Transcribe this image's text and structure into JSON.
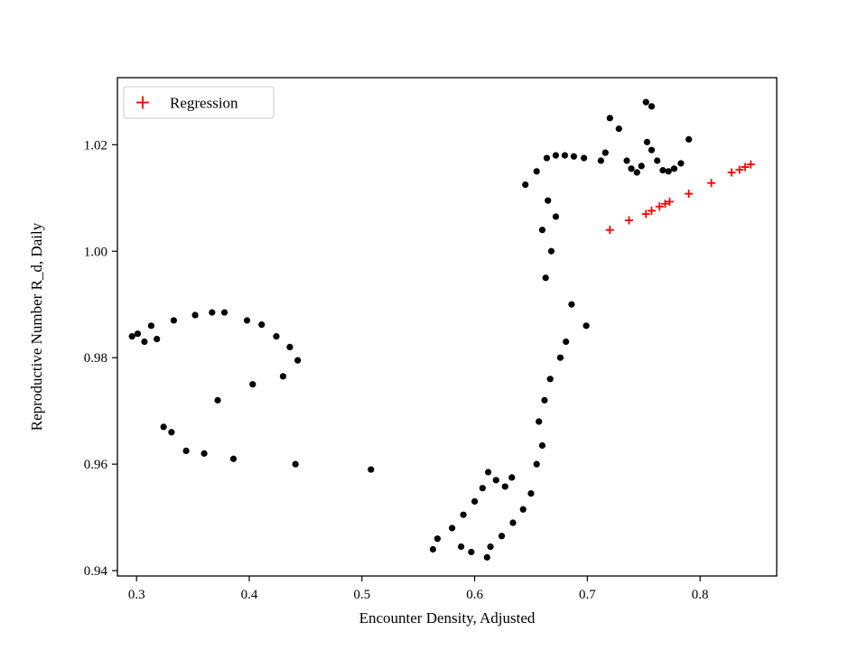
{
  "colors": {
    "background": "#ffffff",
    "axis": "#000000",
    "observations": "#000000",
    "regression": "#ff0000",
    "legend_border": "#cccccc"
  },
  "chart_data": {
    "type": "scatter",
    "title": "",
    "xlabel": "Encounter Density, Adjusted",
    "ylabel": "Reproductive Number R_d, Daily",
    "xlim": [
      0.283,
      0.868
    ],
    "ylim": [
      0.939,
      1.0326
    ],
    "grid": false,
    "xticks": {
      "values": [
        0.3,
        0.4,
        0.5,
        0.6,
        0.7,
        0.8
      ],
      "labels": [
        "0.3",
        "0.4",
        "0.5",
        "0.6",
        "0.7",
        "0.8"
      ]
    },
    "yticks": {
      "values": [
        0.94,
        0.96,
        0.98,
        1.0,
        1.02
      ],
      "labels": [
        "0.94",
        "0.96",
        "0.98",
        "1.00",
        "1.02"
      ]
    },
    "legend": {
      "position": "upper left",
      "entries": [
        {
          "label": "Regression",
          "marker": "plus",
          "color": "#ff0000"
        }
      ]
    },
    "series": [
      {
        "name": "observations",
        "marker": "circle",
        "color": "#000000",
        "points": [
          [
            0.296,
            0.984
          ],
          [
            0.301,
            0.9845
          ],
          [
            0.307,
            0.983
          ],
          [
            0.313,
            0.986
          ],
          [
            0.318,
            0.9835
          ],
          [
            0.333,
            0.987
          ],
          [
            0.352,
            0.988
          ],
          [
            0.367,
            0.9885
          ],
          [
            0.378,
            0.9885
          ],
          [
            0.398,
            0.987
          ],
          [
            0.411,
            0.9862
          ],
          [
            0.424,
            0.984
          ],
          [
            0.436,
            0.982
          ],
          [
            0.443,
            0.9795
          ],
          [
            0.43,
            0.9765
          ],
          [
            0.403,
            0.975
          ],
          [
            0.372,
            0.972
          ],
          [
            0.324,
            0.967
          ],
          [
            0.331,
            0.966
          ],
          [
            0.344,
            0.9625
          ],
          [
            0.36,
            0.962
          ],
          [
            0.386,
            0.961
          ],
          [
            0.441,
            0.96
          ],
          [
            0.508,
            0.959
          ],
          [
            0.563,
            0.944
          ],
          [
            0.567,
            0.946
          ],
          [
            0.588,
            0.9445
          ],
          [
            0.597,
            0.9435
          ],
          [
            0.611,
            0.9425
          ],
          [
            0.614,
            0.9445
          ],
          [
            0.624,
            0.9465
          ],
          [
            0.634,
            0.949
          ],
          [
            0.643,
            0.9515
          ],
          [
            0.65,
            0.9545
          ],
          [
            0.58,
            0.948
          ],
          [
            0.59,
            0.9505
          ],
          [
            0.6,
            0.953
          ],
          [
            0.607,
            0.9555
          ],
          [
            0.612,
            0.9585
          ],
          [
            0.619,
            0.957
          ],
          [
            0.627,
            0.9558
          ],
          [
            0.633,
            0.9575
          ],
          [
            0.655,
            0.96
          ],
          [
            0.66,
            0.9635
          ],
          [
            0.657,
            0.968
          ],
          [
            0.662,
            0.972
          ],
          [
            0.667,
            0.976
          ],
          [
            0.676,
            0.98
          ],
          [
            0.681,
            0.983
          ],
          [
            0.699,
            0.986
          ],
          [
            0.686,
            0.99
          ],
          [
            0.663,
            0.995
          ],
          [
            0.668,
            1.0
          ],
          [
            0.66,
            1.004
          ],
          [
            0.672,
            1.0065
          ],
          [
            0.665,
            1.0095
          ],
          [
            0.645,
            1.0125
          ],
          [
            0.655,
            1.015
          ],
          [
            0.664,
            1.0175
          ],
          [
            0.672,
            1.018
          ],
          [
            0.68,
            1.018
          ],
          [
            0.688,
            1.0178
          ],
          [
            0.697,
            1.0175
          ],
          [
            0.712,
            1.017
          ],
          [
            0.716,
            1.0185
          ],
          [
            0.72,
            1.025
          ],
          [
            0.728,
            1.023
          ],
          [
            0.735,
            1.017
          ],
          [
            0.739,
            1.0155
          ],
          [
            0.744,
            1.0148
          ],
          [
            0.748,
            1.016
          ],
          [
            0.752,
            1.028
          ],
          [
            0.757,
            1.0272
          ],
          [
            0.753,
            1.0205
          ],
          [
            0.757,
            1.019
          ],
          [
            0.762,
            1.017
          ],
          [
            0.767,
            1.0152
          ],
          [
            0.772,
            1.015
          ],
          [
            0.777,
            1.0155
          ],
          [
            0.783,
            1.0165
          ],
          [
            0.79,
            1.021
          ]
        ]
      },
      {
        "name": "Regression",
        "marker": "plus",
        "color": "#ff0000",
        "points": [
          [
            0.72,
            1.004
          ],
          [
            0.737,
            1.0058
          ],
          [
            0.752,
            1.007
          ],
          [
            0.757,
            1.0076
          ],
          [
            0.764,
            1.0084
          ],
          [
            0.769,
            1.0089
          ],
          [
            0.773,
            1.0093
          ],
          [
            0.79,
            1.0108
          ],
          [
            0.81,
            1.0128
          ],
          [
            0.828,
            1.0148
          ],
          [
            0.835,
            1.0153
          ],
          [
            0.84,
            1.0158
          ],
          [
            0.845,
            1.0163
          ]
        ]
      }
    ]
  }
}
